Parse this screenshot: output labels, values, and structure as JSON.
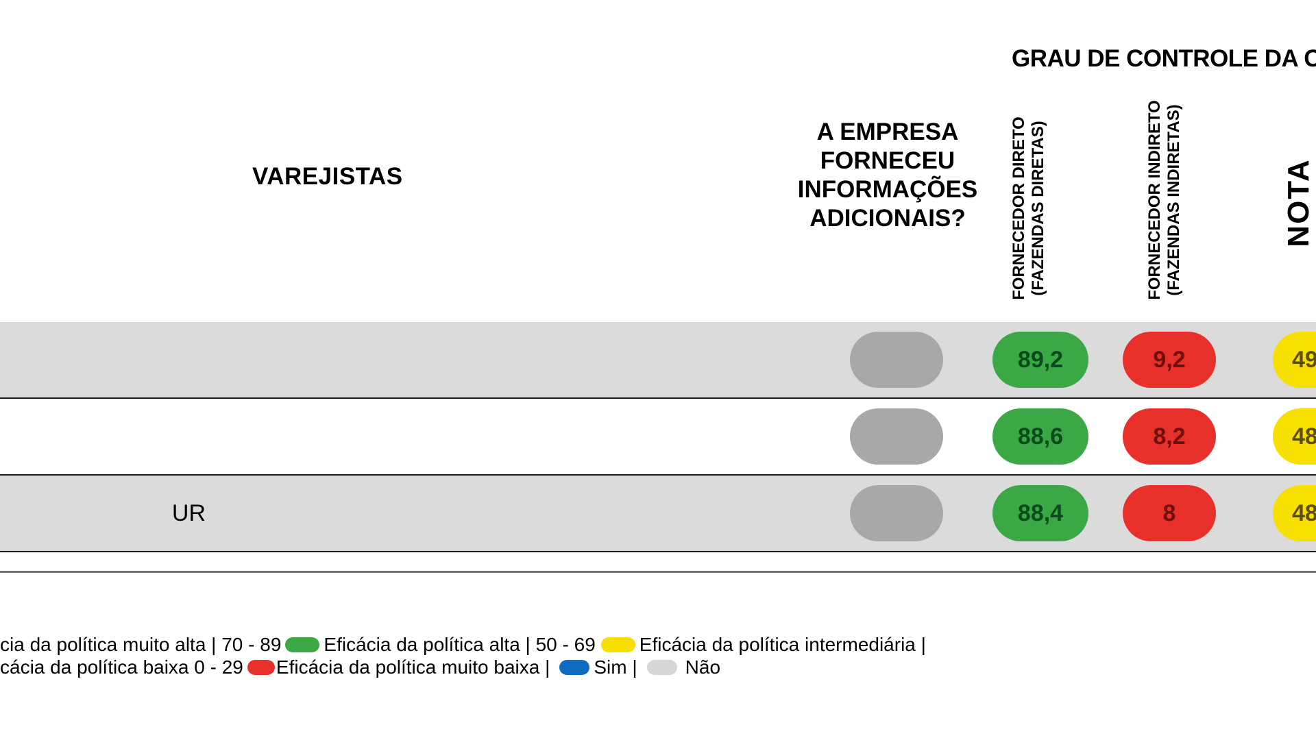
{
  "colors": {
    "very_high": "#3aa845",
    "very_high_text": "#0b4a1c",
    "high": "#3aa845",
    "intermediate": "#f7df00",
    "intermediate_text": "#5e5000",
    "low": "#e8302b",
    "low_text": "#6e0f10",
    "very_low": "#e8302b",
    "sim": "#0f6cbd",
    "nao": "#a8a8a8",
    "nao_legend": "#d6d6d6",
    "row_gray": "#dbdbdb"
  },
  "chart_data": {
    "type": "table",
    "header": {
      "group_title": "GRAU DE CONTROLE DA C",
      "varejistas": "VAREJISTAS",
      "info_lines": [
        "A EMPRESA",
        "FORNECEU",
        "INFORMAÇÕES",
        "ADICIONAIS?"
      ],
      "direct_lines": [
        "FORNECEDOR DIRETO",
        "(FAZENDAS DIRETAS)"
      ],
      "indirect_lines": [
        "FORNECEDOR INDIRETO",
        "(FAZENDAS INDIRETAS)"
      ],
      "nota": "NOTA"
    },
    "rows": [
      {
        "label": "",
        "info": "Não",
        "direct": "89,2",
        "direct_level": "high",
        "indirect": "9,2",
        "indirect_level": "very_low",
        "nota": "49",
        "nota_level": "intermediate"
      },
      {
        "label": "",
        "info": "Não",
        "direct": "88,6",
        "direct_level": "high",
        "indirect": "8,2",
        "indirect_level": "very_low",
        "nota": "48",
        "nota_level": "intermediate"
      },
      {
        "label": "UR",
        "info": "Não",
        "direct": "88,4",
        "direct_level": "high",
        "indirect": "8",
        "indirect_level": "very_low",
        "nota": "48",
        "nota_level": "intermediate"
      }
    ]
  },
  "legend": {
    "line1_part1": "cia da política muito alta | 70 - 89",
    "line1_part2": "Eficácia da política alta | 50 - 69",
    "line1_part3": "Eficácia da política intermediária |",
    "line2_part1": "cácia da política baixa 0 - 29",
    "line2_part2": "Eficácia da política muito baixa |",
    "line2_part3": "Sim |",
    "line2_part4": "Não"
  }
}
